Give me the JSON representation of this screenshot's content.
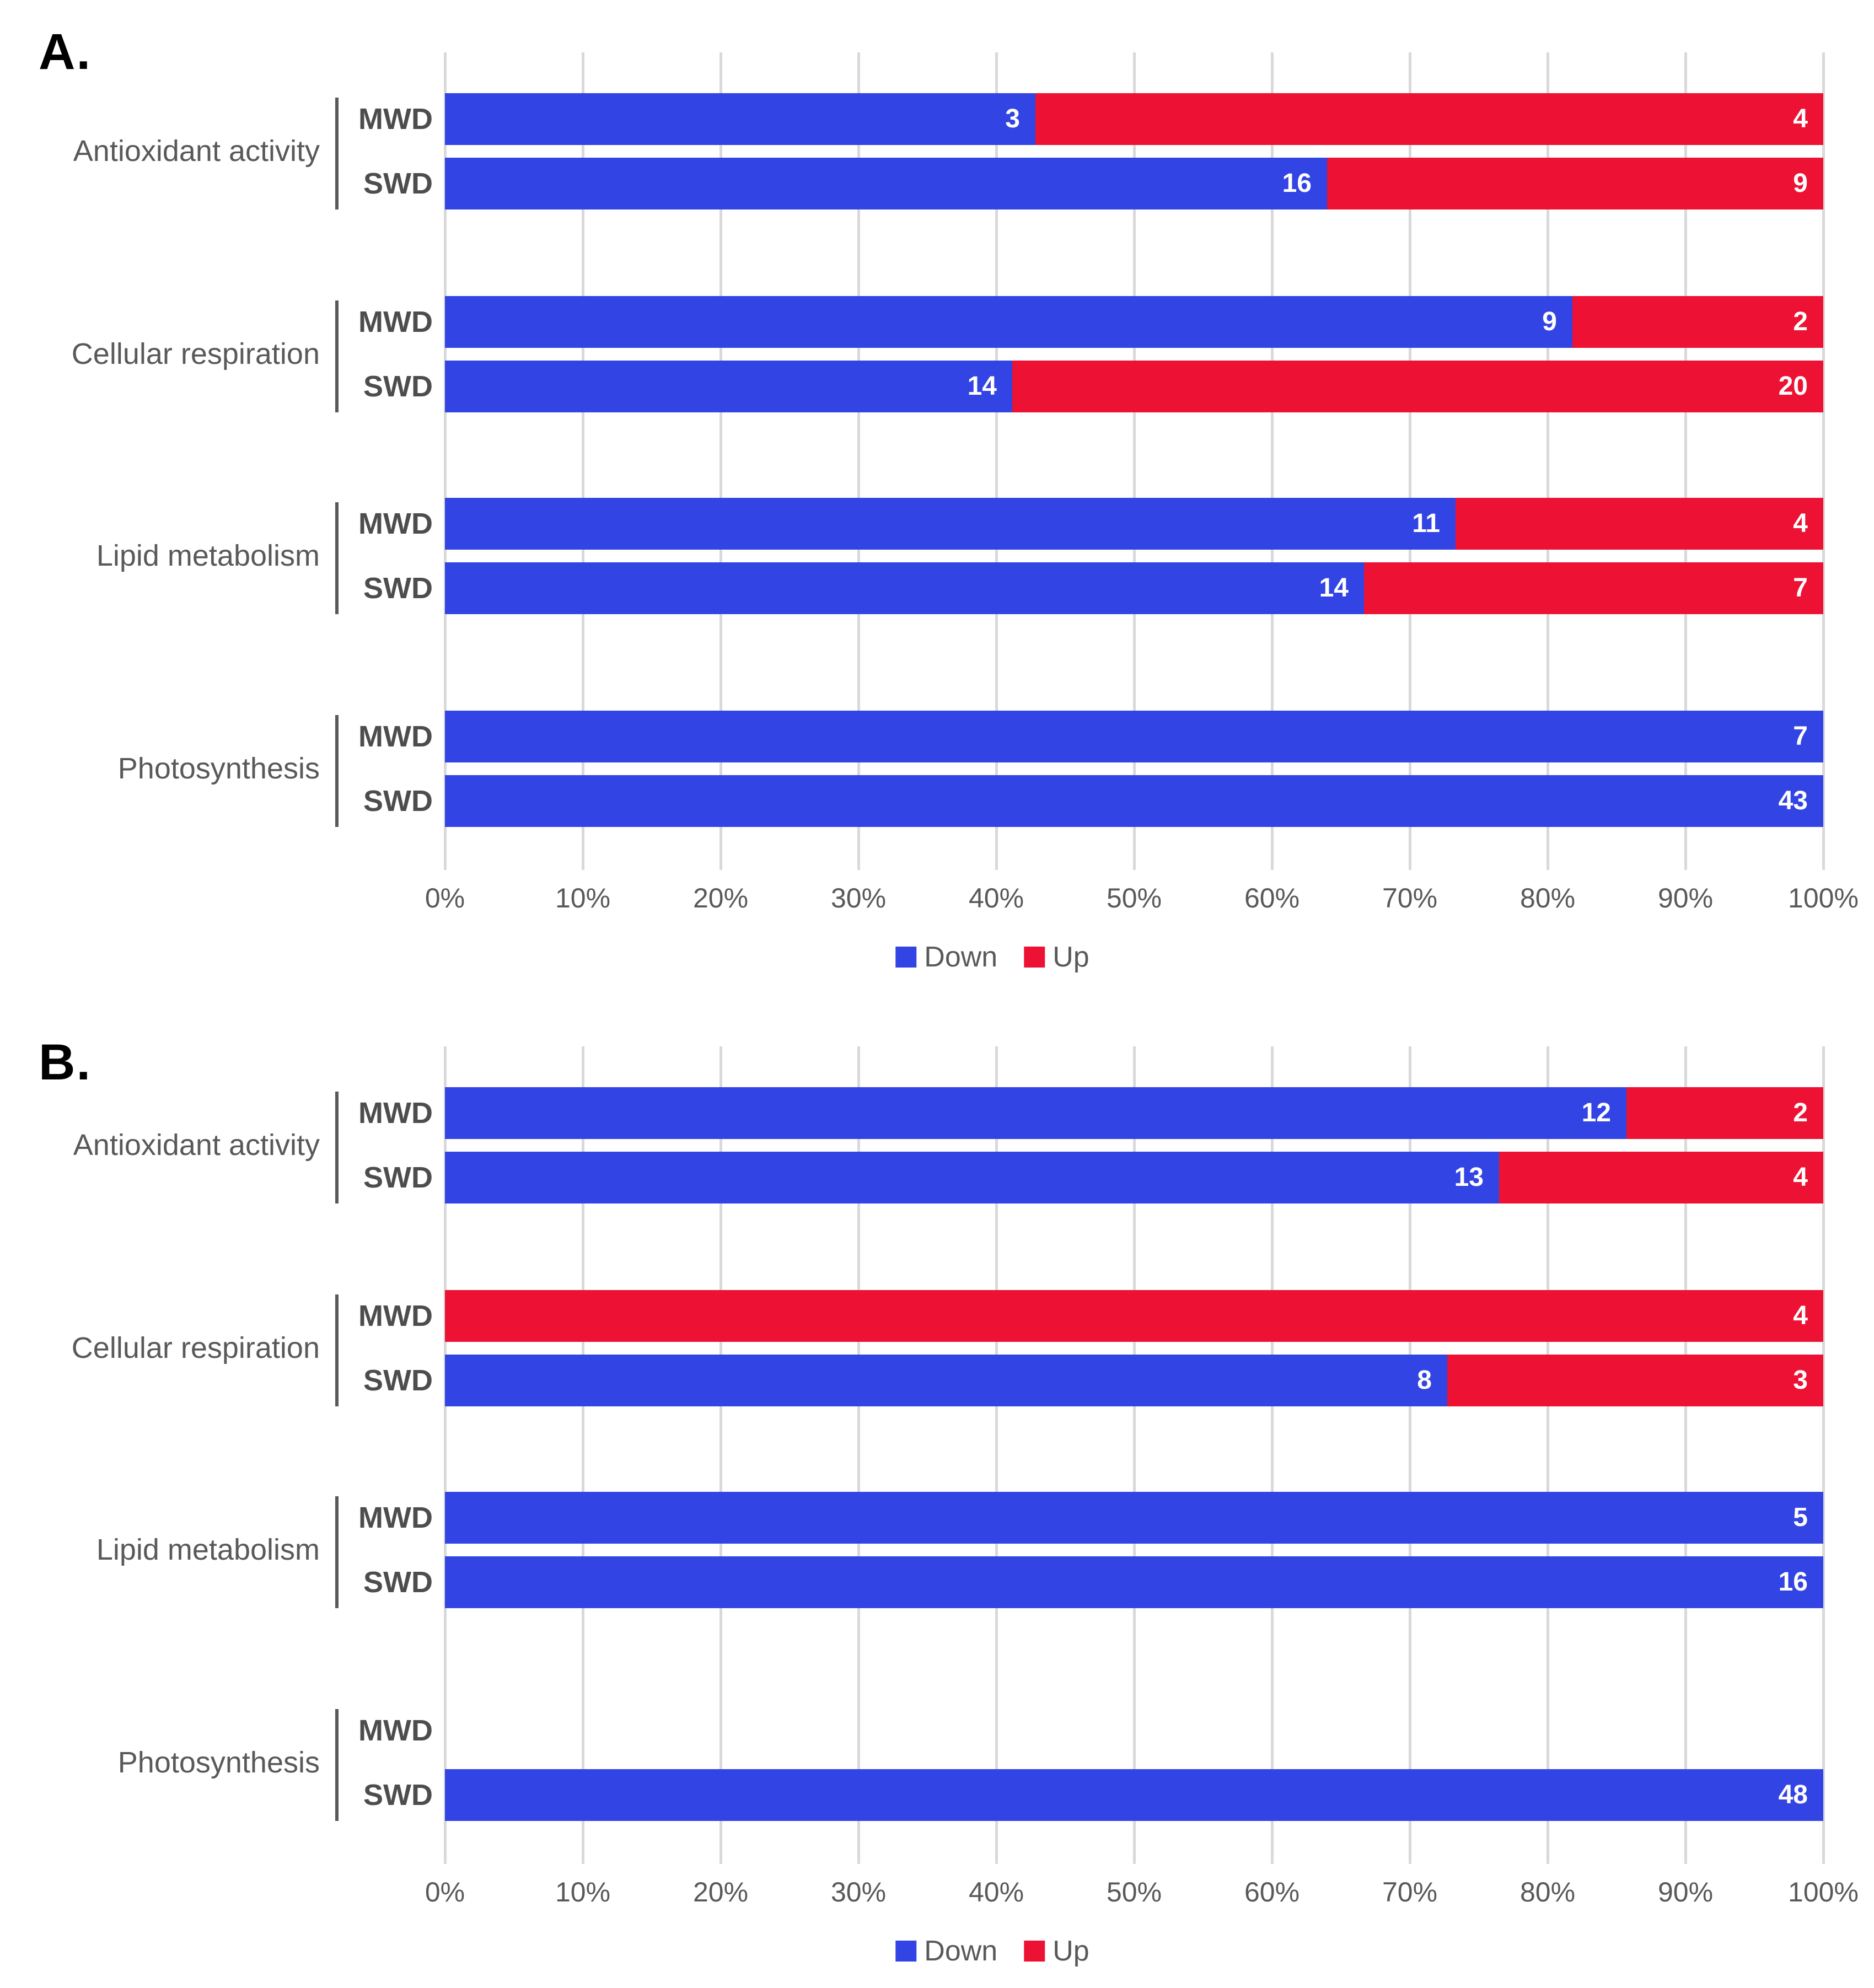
{
  "colors": {
    "down": "#3344E5",
    "up": "#ED1133",
    "gridline": "#D9D9D9",
    "axis_text": "#595959",
    "category_text": "#595959",
    "condition_text": "#4D4D4D",
    "bar_value_text": "#FFFFFF",
    "panel_letter": "#000000",
    "bracket": "#595959"
  },
  "legend": {
    "items": [
      {
        "label": "Down",
        "color_key": "down"
      },
      {
        "label": "Up",
        "color_key": "up"
      }
    ]
  },
  "axis": {
    "ticks": [
      "0%",
      "10%",
      "20%",
      "30%",
      "40%",
      "50%",
      "60%",
      "70%",
      "80%",
      "90%",
      "100%"
    ],
    "min": 0,
    "max": 100
  },
  "chart_data": [
    {
      "type": "bar",
      "orientation": "horizontal",
      "stacked": true,
      "panel_label": "A.",
      "xlabel": "",
      "xlim": [
        0,
        100
      ],
      "grid": true,
      "legend_position": "bottom",
      "note": "Each bar spans 0-100%; blue (Down) and red (Up) segment widths are count/(down+up); labels show gene counts",
      "categories": [
        "Antioxidant activity",
        "Cellular respiration",
        "Lipid metabolism",
        "Photosynthesis"
      ],
      "conditions": [
        "MWD",
        "SWD"
      ],
      "groups": [
        {
          "category": "Antioxidant activity",
          "rows": [
            {
              "condition": "MWD",
              "down": 3,
              "up": 4
            },
            {
              "condition": "SWD",
              "down": 16,
              "up": 9
            }
          ]
        },
        {
          "category": "Cellular respiration",
          "rows": [
            {
              "condition": "MWD",
              "down": 9,
              "up": 2
            },
            {
              "condition": "SWD",
              "down": 14,
              "up": 20
            }
          ]
        },
        {
          "category": "Lipid metabolism",
          "rows": [
            {
              "condition": "MWD",
              "down": 11,
              "up": 4
            },
            {
              "condition": "SWD",
              "down": 14,
              "up": 7
            }
          ]
        },
        {
          "category": "Photosynthesis",
          "rows": [
            {
              "condition": "MWD",
              "down": 7,
              "up": 0
            },
            {
              "condition": "SWD",
              "down": 43,
              "up": 0
            }
          ]
        }
      ]
    },
    {
      "type": "bar",
      "orientation": "horizontal",
      "stacked": true,
      "panel_label": "B.",
      "xlabel": "",
      "xlim": [
        0,
        100
      ],
      "grid": true,
      "legend_position": "bottom",
      "note": "Each bar spans 0-100%; blue (Down) and red (Up) segment widths are count/(down+up); labels show gene counts; empty rows have no bar",
      "categories": [
        "Antioxidant activity",
        "Cellular respiration",
        "Lipid metabolism",
        "Photosynthesis"
      ],
      "conditions": [
        "MWD",
        "SWD"
      ],
      "groups": [
        {
          "category": "Antioxidant activity",
          "rows": [
            {
              "condition": "MWD",
              "down": 12,
              "up": 2
            },
            {
              "condition": "SWD",
              "down": 13,
              "up": 4
            }
          ]
        },
        {
          "category": "Cellular respiration",
          "rows": [
            {
              "condition": "MWD",
              "down": 0,
              "up": 4
            },
            {
              "condition": "SWD",
              "down": 8,
              "up": 3
            }
          ]
        },
        {
          "category": "Lipid metabolism",
          "rows": [
            {
              "condition": "MWD",
              "down": 5,
              "up": 0
            },
            {
              "condition": "SWD",
              "down": 16,
              "up": 0
            }
          ]
        },
        {
          "category": "Photosynthesis",
          "rows": [
            {
              "condition": "MWD",
              "down": 0,
              "up": 0
            },
            {
              "condition": "SWD",
              "down": 48,
              "up": 0
            }
          ]
        }
      ]
    }
  ]
}
